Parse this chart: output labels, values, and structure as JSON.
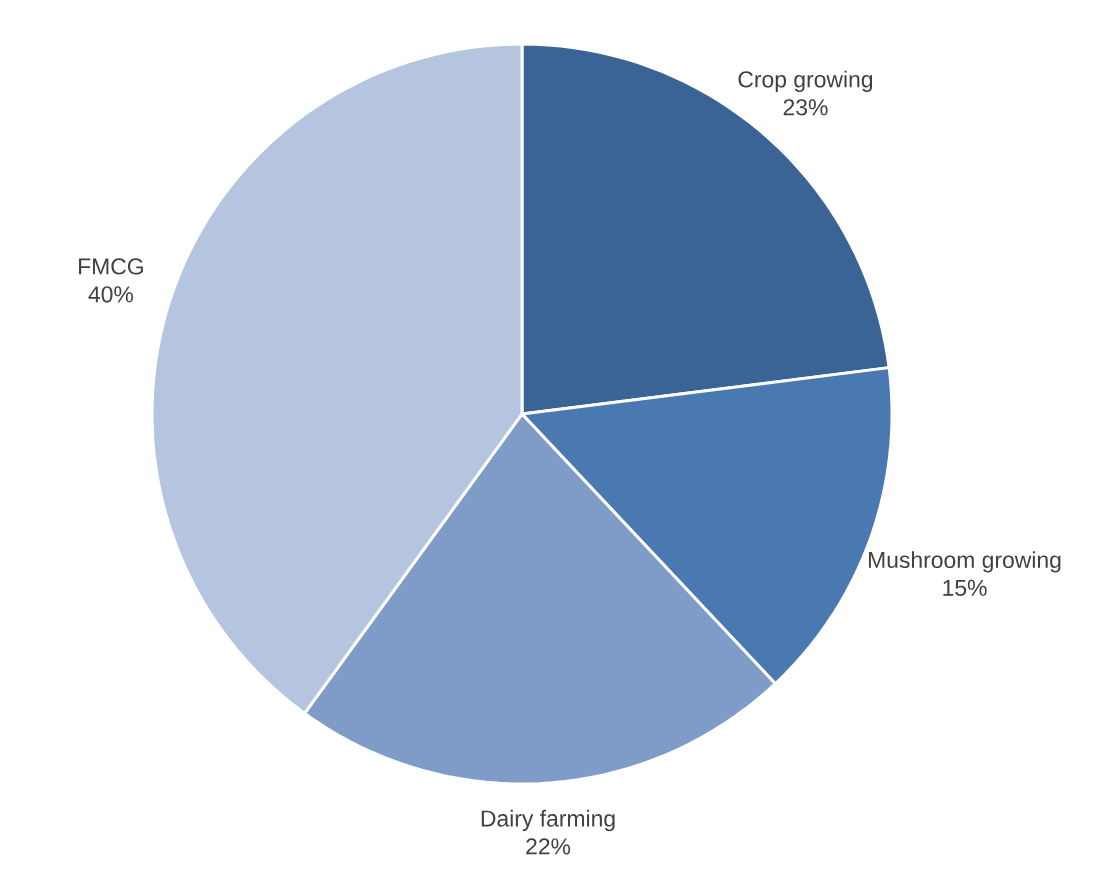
{
  "chart_data": {
    "type": "pie",
    "categories": [
      "Crop growing",
      "Mushroom growing",
      "Dairy farming",
      "FMCG"
    ],
    "values": [
      23,
      15,
      22,
      40
    ],
    "value_labels": [
      "23%",
      "15%",
      "22%",
      "40%"
    ],
    "colors": [
      "#3b6496",
      "#4a79b2",
      "#7f9cc9",
      "#b5c4df"
    ]
  }
}
